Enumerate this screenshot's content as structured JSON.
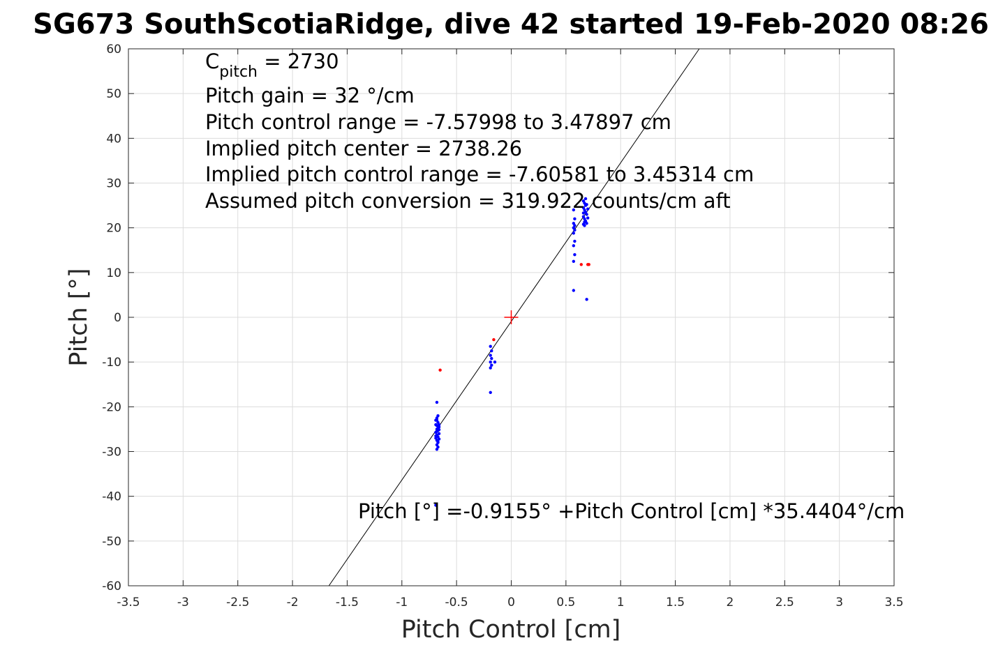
{
  "chart_data": {
    "type": "scatter",
    "title": "SG673 SouthScotiaRidge, dive 42 started 19-Feb-2020 08:26",
    "xlabel": "Pitch Control [cm]",
    "ylabel": "Pitch [°]",
    "xlim": [
      -3.5,
      3.5
    ],
    "ylim": [
      -60,
      60
    ],
    "grid": true,
    "x_ticks": [
      -3.5,
      -3,
      -2.5,
      -2,
      -1.5,
      -1,
      -0.5,
      0,
      0.5,
      1,
      1.5,
      2,
      2.5,
      3,
      3.5
    ],
    "x_tick_labels": [
      "-3.5",
      "-3",
      "-2.5",
      "-2",
      "-1.5",
      "-1",
      "-0.5",
      "0",
      "0.5",
      "1",
      "1.5",
      "2",
      "2.5",
      "3",
      "3.5"
    ],
    "y_ticks": [
      60,
      50,
      40,
      30,
      20,
      10,
      0,
      -10,
      -20,
      -30,
      -40,
      -50,
      -60
    ],
    "y_tick_labels": [
      "60",
      "50",
      "40",
      "30",
      "20",
      "10",
      "0",
      "-10",
      "-20",
      "-30",
      "-40",
      "-50",
      "-60"
    ],
    "annotations": {
      "c_pitch_main": "C",
      "c_pitch_sub": "pitch",
      "c_pitch_value": " = 2730",
      "pitch_gain": "Pitch gain = 32 °/cm",
      "control_range": "Pitch control range = -7.57998 to 3.47897 cm",
      "implied_center": "Implied pitch center = 2738.26",
      "implied_range": "Implied pitch control range = -7.60581 to 3.45314 cm",
      "conversion": "Assumed pitch conversion = 319.922 counts/cm aft",
      "fit_equation": "Pitch [°] =-0.9155° +Pitch Control [cm] *35.4404°/cm"
    },
    "fit_line": {
      "intercept": -0.9155,
      "slope": 35.4404,
      "color": "#000000"
    },
    "center_marker": {
      "x": 0,
      "y": 0,
      "color": "#ff0000",
      "shape": "plus"
    },
    "series": [
      {
        "color": "#0000ff",
        "points": [
          [
            -0.68,
            -19
          ],
          [
            -0.67,
            -22
          ],
          [
            -0.68,
            -23
          ],
          [
            -0.67,
            -23.5
          ],
          [
            -0.69,
            -24
          ],
          [
            -0.66,
            -24.5
          ],
          [
            -0.68,
            -25
          ],
          [
            -0.67,
            -25.3
          ],
          [
            -0.69,
            -25.7
          ],
          [
            -0.66,
            -26
          ],
          [
            -0.68,
            -26.3
          ],
          [
            -0.67,
            -26.7
          ],
          [
            -0.69,
            -27
          ],
          [
            -0.68,
            -27.5
          ],
          [
            -0.67,
            -28
          ],
          [
            -0.68,
            -28.5
          ],
          [
            -0.67,
            -29
          ],
          [
            -0.68,
            -29.5
          ],
          [
            -0.66,
            -24
          ],
          [
            -0.69,
            -23
          ],
          [
            -0.67,
            -24.8
          ],
          [
            -0.68,
            -25.5
          ],
          [
            -0.66,
            -27.2
          ],
          [
            -0.69,
            -26.5
          ],
          [
            -0.68,
            -22.5
          ],
          [
            -0.67,
            -27.8
          ],
          [
            -0.66,
            -25.1
          ],
          [
            -0.68,
            -24.2
          ],
          [
            -0.69,
            -42
          ],
          [
            -0.19,
            -6.5
          ],
          [
            -0.18,
            -7.5
          ],
          [
            -0.19,
            -8.5
          ],
          [
            -0.18,
            -9.2
          ],
          [
            -0.19,
            -10
          ],
          [
            -0.18,
            -10.7
          ],
          [
            -0.19,
            -11.3
          ],
          [
            -0.15,
            -10
          ],
          [
            -0.19,
            -16.8
          ],
          [
            0.57,
            24
          ],
          [
            0.58,
            22
          ],
          [
            0.57,
            21
          ],
          [
            0.58,
            20.5
          ],
          [
            0.57,
            20
          ],
          [
            0.58,
            19.5
          ],
          [
            0.57,
            18.8
          ],
          [
            0.58,
            17
          ],
          [
            0.57,
            16
          ],
          [
            0.58,
            14
          ],
          [
            0.57,
            12.5
          ],
          [
            0.57,
            6
          ],
          [
            0.66,
            26
          ],
          [
            0.67,
            25.5
          ],
          [
            0.68,
            25
          ],
          [
            0.66,
            24.5
          ],
          [
            0.67,
            24
          ],
          [
            0.68,
            23.5
          ],
          [
            0.69,
            23
          ],
          [
            0.66,
            22.5
          ],
          [
            0.67,
            22
          ],
          [
            0.68,
            21.5
          ],
          [
            0.69,
            21
          ],
          [
            0.66,
            20.8
          ],
          [
            0.67,
            20.5
          ],
          [
            0.68,
            26.5
          ],
          [
            0.69,
            25.2
          ],
          [
            0.7,
            24.2
          ],
          [
            0.7,
            22.2
          ],
          [
            0.66,
            23.3
          ],
          [
            0.67,
            21.3
          ],
          [
            0.69,
            4
          ]
        ]
      },
      {
        "color": "#ff0000",
        "points": [
          [
            -0.65,
            -11.8
          ],
          [
            -0.16,
            -5
          ],
          [
            0.64,
            11.8
          ],
          [
            0.7,
            11.8
          ],
          [
            0.71,
            11.8
          ]
        ]
      }
    ]
  }
}
